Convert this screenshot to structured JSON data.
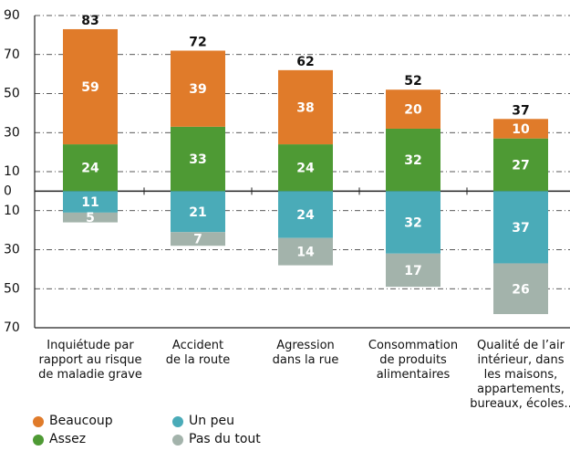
{
  "chart_data": {
    "type": "diverging_stacked_bar",
    "categories": [
      "Inquiétude par\nrapport au risque\nde maladie grave",
      "Accident\nde la route",
      "Agression\ndans la rue",
      "Consommation\nde produits\nalimentaires",
      "Qualité de l’air\nintérieur, dans\nles maisons,\nappartements,\nbureaux, écoles.."
    ],
    "series": [
      {
        "name": "Beaucoup",
        "color": "#e07b2a",
        "values": [
          59,
          39,
          38,
          20,
          10
        ]
      },
      {
        "name": "Assez",
        "color": "#4e9a34",
        "values": [
          24,
          33,
          24,
          32,
          27
        ]
      },
      {
        "name": "Un peu",
        "color": "#4aabb8",
        "values": [
          -11,
          -21,
          -24,
          -32,
          -37
        ],
        "value_labels": [
          "11",
          "21",
          "24",
          "32",
          "37"
        ]
      },
      {
        "name": "Pas du tout",
        "color": "#a3b3ab",
        "values": [
          -5,
          -7,
          -14,
          -17,
          -26
        ],
        "value_labels": [
          "5",
          "7",
          "14",
          "17",
          "26"
        ]
      }
    ],
    "totals": [
      83,
      72,
      62,
      52,
      37
    ],
    "ylim": [
      -70,
      90
    ],
    "yticks": [
      90,
      70,
      50,
      30,
      10,
      0,
      {
        "value": -10,
        "label": "10"
      },
      {
        "value": -30,
        "label": "30"
      },
      {
        "value": -50,
        "label": "50"
      },
      {
        "value": -70,
        "label": "70"
      }
    ],
    "grid": true
  }
}
